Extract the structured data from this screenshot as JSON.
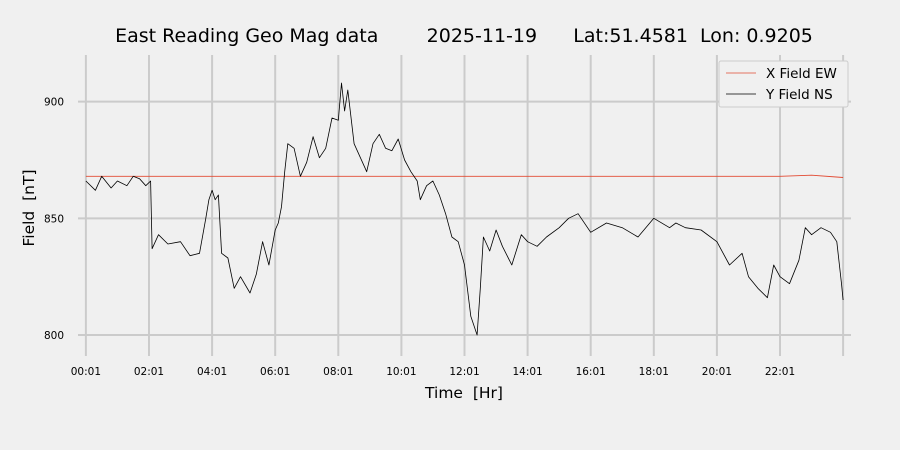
{
  "chart_data": {
    "type": "line",
    "title": "East Reading Geo Mag data        2025-11-19      Lat:51.4581  Lon: 0.9205",
    "xlabel": "Time  [Hr]",
    "ylabel": "Field  [nT]",
    "x_unit": "hours since 00:01",
    "xlim": [
      -0.25,
      24.25
    ],
    "ylim": [
      791,
      920
    ],
    "x_ticks": [
      "00:01",
      "02:01",
      "04:01",
      "06:01",
      "08:01",
      "10:01",
      "12:01",
      "14:01",
      "16:01",
      "18:01",
      "20:01",
      "22:01"
    ],
    "y_ticks": [
      800,
      850,
      900
    ],
    "grid": true,
    "legend": {
      "position": "top-right"
    },
    "series": [
      {
        "name": "X Field EW",
        "color": "#e24a33",
        "x": [
          0,
          2,
          4,
          6,
          8,
          10,
          12,
          14,
          16,
          18,
          20,
          22,
          23,
          24
        ],
        "y": [
          868,
          868,
          868,
          868,
          868,
          868,
          868,
          868,
          868,
          868,
          868,
          868,
          868.5,
          867.5
        ]
      },
      {
        "name": "Y Field NS",
        "color": "#000000",
        "x": [
          0,
          0.3,
          0.5,
          0.8,
          1.0,
          1.3,
          1.5,
          1.7,
          1.9,
          2.05,
          2.1,
          2.3,
          2.6,
          3.0,
          3.3,
          3.6,
          3.8,
          3.9,
          4.0,
          4.1,
          4.2,
          4.3,
          4.5,
          4.7,
          4.9,
          5.2,
          5.4,
          5.6,
          5.8,
          6.0,
          6.1,
          6.2,
          6.3,
          6.4,
          6.6,
          6.8,
          7.0,
          7.2,
          7.4,
          7.6,
          7.8,
          8.0,
          8.1,
          8.2,
          8.3,
          8.5,
          8.7,
          8.9,
          9.1,
          9.3,
          9.5,
          9.7,
          9.9,
          10.1,
          10.3,
          10.5,
          10.6,
          10.8,
          11.0,
          11.2,
          11.4,
          11.6,
          11.8,
          12.0,
          12.2,
          12.4,
          12.5,
          12.6,
          12.8,
          13.0,
          13.2,
          13.5,
          13.8,
          14.0,
          14.3,
          14.6,
          15.0,
          15.3,
          15.6,
          16.0,
          16.5,
          17.0,
          17.5,
          18.0,
          18.5,
          18.7,
          19.0,
          19.5,
          20.0,
          20.4,
          20.8,
          21.0,
          21.3,
          21.6,
          21.8,
          22.0,
          22.3,
          22.6,
          22.8,
          23.0,
          23.3,
          23.6,
          23.8,
          23.95,
          24.0
        ],
        "y": [
          866,
          862,
          868,
          863,
          866,
          864,
          868,
          867,
          864,
          866,
          837,
          843,
          839,
          840,
          834,
          835,
          850,
          858,
          862,
          858,
          860,
          835,
          833,
          820,
          825,
          818,
          826,
          840,
          830,
          845,
          848,
          855,
          870,
          882,
          880,
          868,
          874,
          885,
          876,
          880,
          893,
          892,
          908,
          896,
          905,
          882,
          876,
          870,
          882,
          886,
          880,
          879,
          884,
          875,
          870,
          866,
          858,
          864,
          866,
          860,
          852,
          842,
          840,
          830,
          808,
          800,
          820,
          842,
          836,
          845,
          838,
          830,
          843,
          840,
          838,
          842,
          846,
          850,
          852,
          844,
          848,
          846,
          842,
          850,
          846,
          848,
          846,
          845,
          840,
          830,
          835,
          825,
          820,
          816,
          830,
          825,
          822,
          832,
          846,
          843,
          846,
          844,
          840,
          822,
          815
        ]
      }
    ]
  }
}
